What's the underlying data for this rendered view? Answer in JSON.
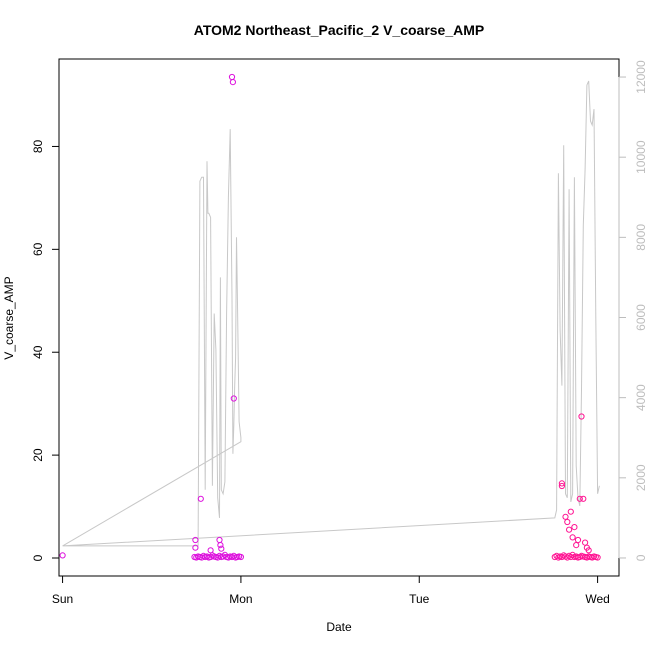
{
  "chart_data": {
    "type": "scatter",
    "title": "ATOM2 Northeast_Pacific_2 V_coarse_AMP",
    "xlabel": "Date",
    "ylabel": "V_coarse_AMP",
    "x_ticks": [
      "Sun",
      "Mon",
      "Tue",
      "Wed"
    ],
    "x_range_days": [
      -0.02,
      3.12
    ],
    "ylim": [
      -3.5,
      97
    ],
    "y_ticks": [
      0,
      20,
      40,
      60,
      80
    ],
    "y2lim": [
      -450,
      12450
    ],
    "y2_ticks": [
      0,
      2000,
      4000,
      6000,
      8000,
      10000,
      12000
    ],
    "grid": false,
    "colors": {
      "points_a": "#dd11dd",
      "points_b": "#ff1493",
      "line": "#c8c8c8"
    },
    "series": [
      {
        "axis": "left",
        "style": "points",
        "x": [
          0.0,
          0.74,
          0.75,
          0.76,
          0.77,
          0.78,
          0.79,
          0.8,
          0.81,
          0.82,
          0.83,
          0.84,
          0.85,
          0.86,
          0.87,
          0.88,
          0.89,
          0.9,
          0.91,
          0.92,
          0.93,
          0.94,
          0.95,
          0.96,
          0.97,
          0.98,
          0.99,
          1.0,
          0.745,
          0.745,
          0.83,
          0.775,
          0.88,
          0.885,
          0.89,
          0.95,
          0.955,
          0.96
        ],
        "y": [
          0.5,
          0.2,
          0.1,
          0.3,
          0.2,
          0.1,
          0.4,
          0.2,
          0.3,
          0.1,
          0.2,
          0.5,
          0.3,
          0.2,
          0.1,
          0.4,
          0.2,
          0.3,
          0.6,
          0.2,
          0.1,
          0.3,
          0.2,
          0.4,
          0.1,
          0.2,
          0.3,
          0.2,
          3.5,
          2.0,
          1.5,
          11.5,
          3.5,
          2.5,
          1.8,
          93.5,
          92.5,
          31.0
        ]
      },
      {
        "axis": "left",
        "style": "points",
        "x": [
          2.76,
          2.77,
          2.78,
          2.79,
          2.8,
          2.81,
          2.82,
          2.83,
          2.84,
          2.85,
          2.86,
          2.87,
          2.88,
          2.89,
          2.9,
          2.91,
          2.92,
          2.93,
          2.94,
          2.95,
          2.96,
          2.97,
          2.98,
          2.99,
          3.0,
          2.8,
          2.8,
          2.82,
          2.83,
          2.84,
          2.85,
          2.86,
          2.87,
          2.88,
          2.89,
          2.9,
          2.91,
          2.92,
          2.93,
          2.94,
          2.95
        ],
        "y": [
          0.2,
          0.4,
          0.1,
          0.3,
          0.2,
          0.5,
          0.3,
          0.1,
          0.4,
          0.2,
          0.6,
          0.2,
          0.3,
          0.1,
          0.2,
          0.4,
          0.3,
          0.2,
          0.1,
          0.3,
          0.2,
          0.1,
          0.3,
          0.2,
          0.1,
          14.5,
          14.0,
          8.0,
          7.0,
          5.5,
          9.0,
          4.0,
          6.0,
          2.5,
          3.5,
          11.5,
          27.5,
          11.5,
          3.0,
          2.0,
          1.5
        ]
      },
      {
        "axis": "right",
        "style": "line",
        "x": [
          0.0,
          0.76,
          0.77,
          0.78,
          0.79,
          0.8,
          0.81,
          0.815,
          0.82,
          0.83,
          0.84,
          0.85,
          0.86,
          0.87,
          0.88,
          0.885,
          0.89,
          0.9,
          0.91,
          0.92,
          0.93,
          0.94,
          0.95,
          0.955,
          0.96,
          0.965,
          0.97,
          0.975,
          0.98,
          0.99,
          1.0,
          1.0,
          0.0,
          2.76,
          2.77,
          2.78,
          2.79,
          2.8,
          2.81,
          2.82,
          2.83,
          2.84,
          2.85,
          2.86,
          2.87,
          2.88,
          2.89,
          2.9,
          2.91,
          2.92,
          2.93,
          2.94,
          2.95,
          2.96,
          2.97,
          2.98,
          2.99,
          3.0,
          3.01
        ],
        "y": [
          300,
          300,
          9400,
          9500,
          9500,
          1700,
          9900,
          8600,
          8600,
          8500,
          1800,
          6100,
          5200,
          1500,
          1000,
          7000,
          1700,
          1600,
          1900,
          6100,
          9000,
          10700,
          6500,
          2600,
          3300,
          4300,
          5000,
          8000,
          6700,
          3400,
          3000,
          2900,
          300,
          1000,
          1200,
          9600,
          5700,
          4300,
          10300,
          1600,
          1500,
          9200,
          1400,
          1600,
          9500,
          2300,
          1500,
          1300,
          4200,
          8300,
          9700,
          11800,
          11900,
          10900,
          10800,
          11200,
          6000,
          1600,
          1800
        ]
      }
    ]
  }
}
